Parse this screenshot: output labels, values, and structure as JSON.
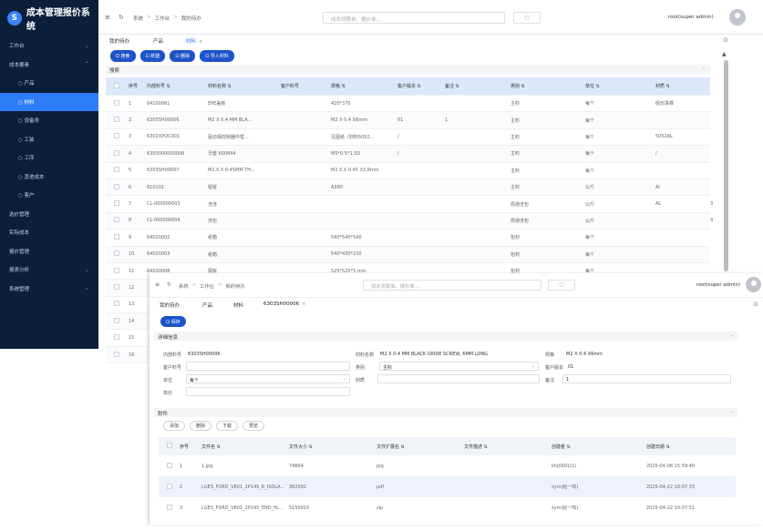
{
  "app": {
    "name": "成本管理报价系统"
  },
  "sidebar": {
    "items": [
      {
        "label": "工作台",
        "level": 0,
        "arrow": "⌄",
        "active": false
      },
      {
        "label": "成本要素",
        "level": 0,
        "arrow": "⌃",
        "active": false
      },
      {
        "label": "○ 产品",
        "level": 1,
        "arrow": "",
        "active": false
      },
      {
        "label": "○ 材料",
        "level": 1,
        "arrow": "",
        "active": true
      },
      {
        "label": "○ 设备类",
        "level": 1,
        "arrow": "",
        "active": false
      },
      {
        "label": "○ 工装",
        "level": 1,
        "arrow": "",
        "active": false
      },
      {
        "label": "○ 工序",
        "level": 1,
        "arrow": "",
        "active": false
      },
      {
        "label": "○ 其他成本",
        "level": 1,
        "arrow": "",
        "active": false
      },
      {
        "label": "○ 客户",
        "level": 1,
        "arrow": "",
        "active": false
      },
      {
        "label": "选价管理",
        "level": 0,
        "arrow": "",
        "active": false
      },
      {
        "label": "实际成本",
        "level": 0,
        "arrow": "",
        "active": false
      },
      {
        "label": "报价管理",
        "level": 0,
        "arrow": "",
        "active": false
      },
      {
        "label": "报表分析",
        "level": 0,
        "arrow": "⌄",
        "active": false
      },
      {
        "label": "系统管理",
        "level": 0,
        "arrow": "⌄",
        "active": false
      }
    ]
  },
  "header": {
    "breadcrumb": [
      "系统",
      "工作台",
      "我的待办"
    ],
    "search_placeholder": "成本测算单、报价单...",
    "search_button_icon": "○",
    "user": "root(super admin)"
  },
  "tabs": [
    {
      "label": "我的待办",
      "active": false,
      "closable": false
    },
    {
      "label": "产品",
      "active": false,
      "closable": false
    },
    {
      "label": "材料",
      "active": true,
      "closable": true
    }
  ],
  "toolbar": {
    "search": "Q 搜索",
    "create": "⊡ 新建",
    "delete": "⊡ 删除",
    "import": "⊡ 导入材料"
  },
  "search_section": {
    "label": "搜索"
  },
  "materials_table": {
    "columns": [
      "序号",
      "内部料号 ⇅",
      "材料名称 ⇅",
      "客户料号",
      "规格 ⇅",
      "客户版本 ⇅",
      "备注 ⇅",
      "类别 ⇅",
      "单位 ⇅",
      "材质 ⇅"
    ],
    "rows": [
      [
        "1",
        "64100061",
        "EPE盖板",
        "",
        "420*370",
        "",
        "",
        "主料",
        "每个",
        "经珍珠棉"
      ],
      [
        "2",
        "6303SH00006",
        "M2 X 0.4 MM BLA...",
        "",
        "M2 X 0.4 X6mm",
        "01",
        "1",
        "主料",
        "每个",
        ""
      ],
      [
        "3",
        "6302XPQC001",
        "驱动相控制器中框...",
        "",
        "见图纸（材料5052...",
        "/",
        "",
        "主料",
        "每个",
        "5052AL"
      ],
      [
        "4",
        "6303000000008",
        "牙套 600844",
        "",
        "M5*0.5*1.5D",
        "/",
        "",
        "主料",
        "每个",
        "/"
      ],
      [
        "5",
        "6303SH00007",
        "M2.5 X 0.45MM TH...",
        "",
        "M2.5 X 0.45 X3.8mm",
        "",
        "",
        "主料",
        "每个",
        ""
      ],
      [
        "6",
        "610101",
        "铝锭",
        "",
        "A380",
        "",
        "",
        "主料",
        "公斤",
        "Al"
      ],
      [
        "7",
        "CL-000000003",
        "洗涤",
        "",
        "",
        "",
        "",
        "周通洗包",
        "公斤",
        "AL"
      ],
      [
        "8",
        "CL-000000004",
        "洗包",
        "",
        "",
        "",
        "",
        "周通洗包",
        "公斤",
        ""
      ],
      [
        "9",
        "64020002",
        "纸箱",
        "",
        "540*540*540",
        "",
        "",
        "包材",
        "每个",
        ""
      ],
      [
        "10",
        "64020003",
        "纸箱",
        "",
        "540*430*230",
        "",
        "",
        "包材",
        "每个",
        ""
      ],
      [
        "11",
        "64030008",
        "隔板",
        "",
        "525*525*5 mm",
        "",
        "",
        "包材",
        "每个",
        ""
      ],
      [
        "12",
        "",
        "",
        "",
        "",
        "",
        "",
        "",
        "",
        ""
      ],
      [
        "13",
        "",
        "",
        "",
        "",
        "",
        "",
        "",
        "",
        ""
      ],
      [
        "14",
        "",
        "",
        "",
        "",
        "",
        "",
        "",
        "",
        ""
      ],
      [
        "15",
        "",
        "",
        "",
        "",
        "",
        "",
        "",
        "",
        ""
      ],
      [
        "16",
        "",
        "",
        "",
        "",
        "",
        "",
        "",
        "",
        ""
      ]
    ],
    "overflow_values": {
      "7": "3",
      "8": "3"
    }
  },
  "detail": {
    "tabs": [
      {
        "label": "我的待办",
        "closable": false
      },
      {
        "label": "产品",
        "closable": false
      },
      {
        "label": "材料",
        "closable": false
      },
      {
        "label": "6303SH00006",
        "closable": true
      }
    ],
    "save_label": "⊡ 保存",
    "section_detail": "详细信息",
    "fields": {
      "internal_no_label": "内部料号",
      "internal_no_value": "6303SH00006",
      "material_name_label": "材料名称",
      "material_name_value": "M2 X 0.4 MM BLACK OXIDE SCREW, 6MM LONG",
      "spec_label": "规格",
      "spec_value": "M2 X 0.4 X6mm",
      "customer_no_label": "客户料号",
      "customer_no_value": "",
      "category_label": "类别",
      "category_value": "主料",
      "customer_version_label": "客户版本",
      "customer_version_value": "01",
      "unit_label": "单位",
      "unit_value": "每个",
      "texture_label": "材质",
      "texture_value": "",
      "remark_label": "备注",
      "remark_value": "1",
      "price_label": "单价",
      "price_value": ""
    },
    "section_attachment": "附件",
    "attachment_actions": [
      "添加",
      "删除",
      "下载",
      "预览"
    ],
    "attachment_columns": [
      "序号",
      "文件名 ⇅",
      "文件大小 ⇅",
      "文件扩展名 ⇅",
      "文件描述 ⇅",
      "创建者 ⇅",
      "创建日期 ⇅"
    ],
    "attachments": [
      [
        "1",
        "1.jpg",
        "74664",
        "jpg",
        "",
        "khj0001(1)",
        "2025-04-08 15:59:40"
      ],
      [
        "2",
        "LGES_FORD_V801_2P14S_R_ISOLA...",
        "382092",
        "pdf",
        "",
        "zym(赵一鸣)",
        "2025-04-22 10:07:33"
      ],
      [
        "3",
        "LGES_FORD_V801_2P14S_END_PL...",
        "5150910",
        "zip",
        "",
        "zym(赵一鸣)",
        "2025-04-22 10:07:51"
      ]
    ]
  },
  "colors": {
    "sidebar_bg": "#0b1f3b",
    "active_nav": "#2f7df6",
    "primary_button": "#1e53c8",
    "table_header": "#dbe8fb"
  },
  "icons": {
    "menu": "menu-icon",
    "refresh": "refresh-icon",
    "gear": "gear-icon",
    "chevron": "chevron-down-icon"
  }
}
